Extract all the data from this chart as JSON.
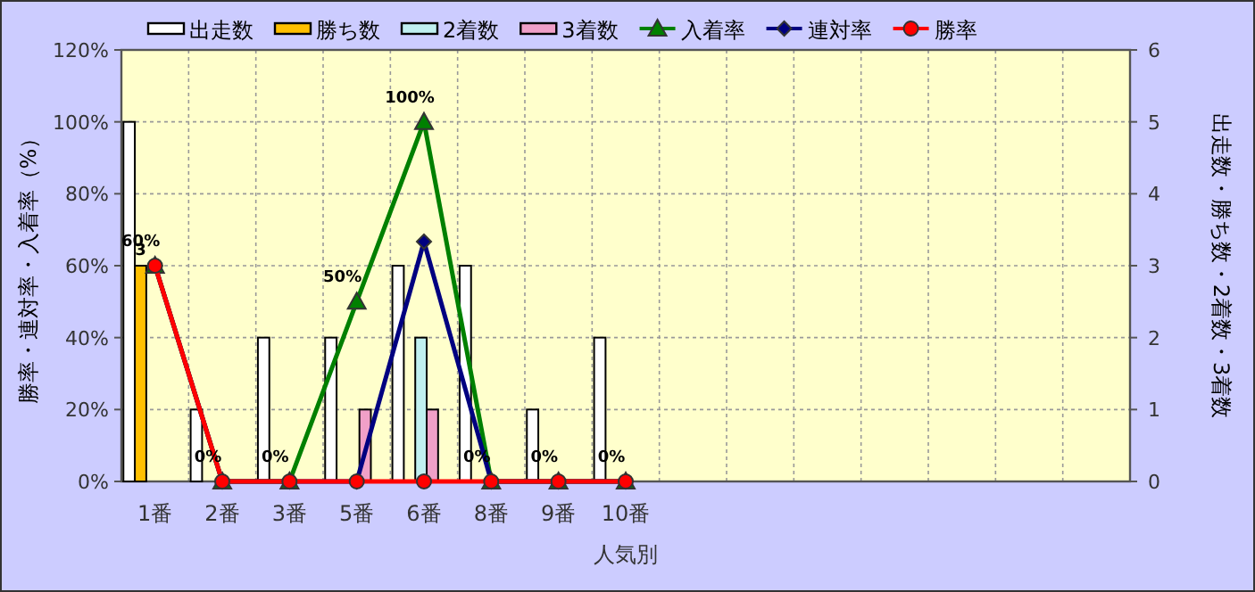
{
  "chart_data": {
    "type": "bar",
    "xlabel": "人気別",
    "ylabel": "勝率・連対率・入着率（%）",
    "y2label": "出走数・勝ち数・2着数・3着数",
    "categories": [
      "1番",
      "2番",
      "3番",
      "5番",
      "6番",
      "8番",
      "9番",
      "10番",
      null,
      null,
      null,
      null,
      null,
      null,
      null
    ],
    "ylim": [
      0,
      120
    ],
    "yticks": [
      {
        "value": 0,
        "label": "0%"
      },
      {
        "value": 20,
        "label": "20%"
      },
      {
        "value": 40,
        "label": "40%"
      },
      {
        "value": 60,
        "label": "60%"
      },
      {
        "value": 80,
        "label": "80%"
      },
      {
        "value": 100,
        "label": "100%"
      },
      {
        "value": 120,
        "label": "120%"
      }
    ],
    "y2lim": [
      0,
      6
    ],
    "y2ticks": [
      0,
      1,
      2,
      3,
      4,
      5,
      6
    ],
    "grid": true,
    "legend": "top",
    "series": [
      {
        "name": "出走数",
        "axis": "y2",
        "color": "#ffffff",
        "values": [
          5,
          1,
          2,
          2,
          3,
          3,
          1,
          2,
          null,
          null,
          null,
          null,
          null,
          null,
          null
        ]
      },
      {
        "name": "勝ち数",
        "axis": "y2",
        "color": "#ffc000",
        "values": [
          3,
          0,
          0,
          0,
          0,
          0,
          0,
          0,
          null,
          null,
          null,
          null,
          null,
          null,
          null
        ],
        "value_labels": [
          "3",
          null,
          null,
          null,
          null,
          null,
          null,
          null,
          null,
          null,
          null,
          null,
          null,
          null,
          null
        ]
      },
      {
        "name": "2着数",
        "axis": "y2",
        "color": "#c0f0f0",
        "values": [
          0,
          0,
          0,
          0,
          2,
          0,
          0,
          0,
          null,
          null,
          null,
          null,
          null,
          null,
          null
        ]
      },
      {
        "name": "3着数",
        "axis": "y2",
        "color": "#f0a0c8",
        "values": [
          0,
          0,
          0,
          1,
          1,
          0,
          0,
          0,
          null,
          null,
          null,
          null,
          null,
          null,
          null
        ]
      },
      {
        "name": "入着率",
        "type": "line",
        "color": "#008000",
        "marker": "triangle",
        "values": [
          60,
          0,
          0,
          50,
          100,
          0,
          0,
          0,
          null,
          null,
          null,
          null,
          null,
          null,
          null
        ],
        "value_labels": [
          "60%",
          "0%",
          "0%",
          "50%",
          "100%",
          "0%",
          "0%",
          "0%",
          null,
          null,
          null,
          null,
          null,
          null,
          null
        ]
      },
      {
        "name": "連対率",
        "type": "line",
        "color": "#000080",
        "marker": "diamond",
        "values": [
          60,
          0,
          0,
          0,
          66.7,
          0,
          0,
          0,
          null,
          null,
          null,
          null,
          null,
          null,
          null
        ]
      },
      {
        "name": "勝率",
        "type": "line",
        "color": "#ff0000",
        "marker": "circle",
        "values": [
          60,
          0,
          0,
          0,
          0,
          0,
          0,
          0,
          null,
          null,
          null,
          null,
          null,
          null,
          null
        ]
      }
    ]
  }
}
